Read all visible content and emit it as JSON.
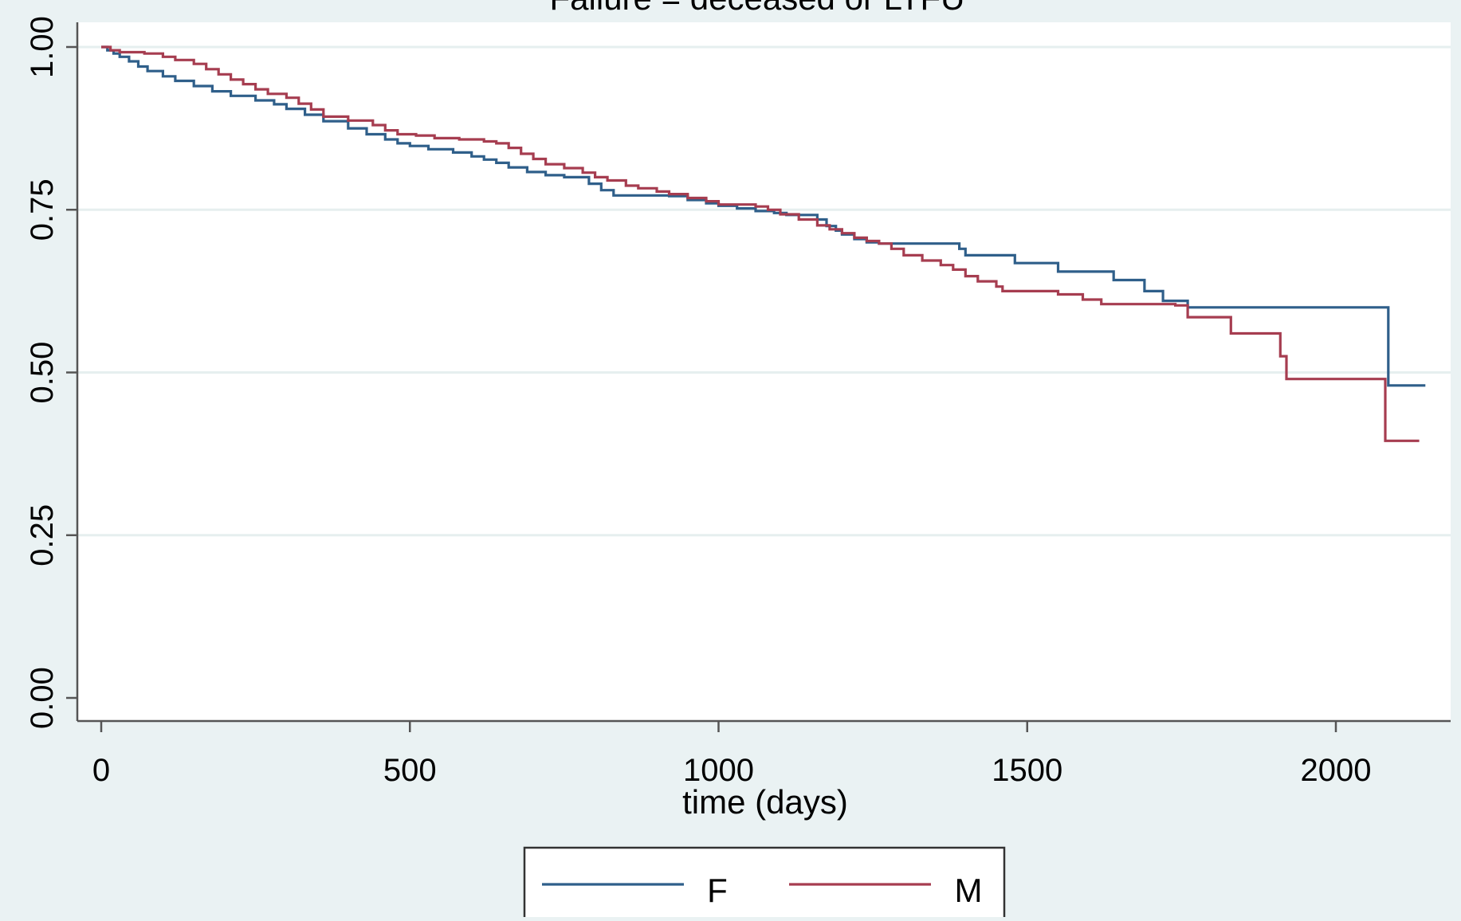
{
  "chart_data": {
    "type": "line",
    "title": "Failure = deceased or LTFU",
    "xlabel": "time (days)",
    "ylabel": "",
    "xlim": [
      0,
      2150
    ],
    "ylim": [
      0,
      1
    ],
    "x_ticks": [
      0,
      500,
      1000,
      1500,
      2000
    ],
    "x_tick_labels": [
      "0",
      "500",
      "1000",
      "1500",
      "2000"
    ],
    "y_ticks": [
      0,
      0.25,
      0.5,
      0.75,
      1
    ],
    "y_tick_labels": [
      "0.00",
      "0.25",
      "0.50",
      "0.75",
      "1.00"
    ],
    "grid": "horizontal",
    "legend_position": "bottom",
    "series": [
      {
        "name": "F",
        "color": "#2f5f8a",
        "step": true,
        "points": [
          [
            0,
            1.0
          ],
          [
            10,
            0.995
          ],
          [
            20,
            0.99
          ],
          [
            30,
            0.985
          ],
          [
            45,
            0.978
          ],
          [
            60,
            0.97
          ],
          [
            75,
            0.963
          ],
          [
            100,
            0.955
          ],
          [
            120,
            0.948
          ],
          [
            150,
            0.94
          ],
          [
            180,
            0.932
          ],
          [
            210,
            0.925
          ],
          [
            250,
            0.918
          ],
          [
            280,
            0.912
          ],
          [
            300,
            0.905
          ],
          [
            330,
            0.896
          ],
          [
            360,
            0.886
          ],
          [
            400,
            0.875
          ],
          [
            430,
            0.866
          ],
          [
            460,
            0.858
          ],
          [
            480,
            0.852
          ],
          [
            500,
            0.848
          ],
          [
            530,
            0.843
          ],
          [
            570,
            0.838
          ],
          [
            600,
            0.832
          ],
          [
            620,
            0.827
          ],
          [
            640,
            0.822
          ],
          [
            660,
            0.815
          ],
          [
            690,
            0.808
          ],
          [
            720,
            0.803
          ],
          [
            750,
            0.8
          ],
          [
            790,
            0.79
          ],
          [
            810,
            0.78
          ],
          [
            830,
            0.772
          ],
          [
            880,
            0.772
          ],
          [
            920,
            0.771
          ],
          [
            950,
            0.765
          ],
          [
            980,
            0.76
          ],
          [
            1000,
            0.756
          ],
          [
            1030,
            0.752
          ],
          [
            1060,
            0.748
          ],
          [
            1090,
            0.745
          ],
          [
            1110,
            0.742
          ],
          [
            1150,
            0.742
          ],
          [
            1160,
            0.735
          ],
          [
            1175,
            0.725
          ],
          [
            1190,
            0.718
          ],
          [
            1200,
            0.712
          ],
          [
            1220,
            0.705
          ],
          [
            1240,
            0.7
          ],
          [
            1260,
            0.698
          ],
          [
            1380,
            0.698
          ],
          [
            1390,
            0.69
          ],
          [
            1400,
            0.68
          ],
          [
            1460,
            0.68
          ],
          [
            1480,
            0.668
          ],
          [
            1550,
            0.655
          ],
          [
            1640,
            0.642
          ],
          [
            1690,
            0.625
          ],
          [
            1720,
            0.61
          ],
          [
            1760,
            0.6
          ],
          [
            2080,
            0.6
          ],
          [
            2085,
            0.48
          ],
          [
            2145,
            0.48
          ]
        ]
      },
      {
        "name": "M",
        "color": "#a63d50",
        "step": true,
        "points": [
          [
            0,
            1.0
          ],
          [
            15,
            0.995
          ],
          [
            30,
            0.992
          ],
          [
            70,
            0.99
          ],
          [
            100,
            0.985
          ],
          [
            120,
            0.98
          ],
          [
            150,
            0.974
          ],
          [
            170,
            0.966
          ],
          [
            190,
            0.958
          ],
          [
            210,
            0.95
          ],
          [
            230,
            0.943
          ],
          [
            250,
            0.935
          ],
          [
            270,
            0.928
          ],
          [
            300,
            0.922
          ],
          [
            320,
            0.913
          ],
          [
            340,
            0.904
          ],
          [
            360,
            0.893
          ],
          [
            400,
            0.887
          ],
          [
            440,
            0.88
          ],
          [
            460,
            0.872
          ],
          [
            480,
            0.866
          ],
          [
            510,
            0.864
          ],
          [
            540,
            0.86
          ],
          [
            580,
            0.858
          ],
          [
            620,
            0.855
          ],
          [
            640,
            0.852
          ],
          [
            660,
            0.845
          ],
          [
            680,
            0.836
          ],
          [
            700,
            0.828
          ],
          [
            720,
            0.82
          ],
          [
            750,
            0.814
          ],
          [
            780,
            0.807
          ],
          [
            800,
            0.8
          ],
          [
            820,
            0.795
          ],
          [
            850,
            0.787
          ],
          [
            870,
            0.783
          ],
          [
            900,
            0.778
          ],
          [
            920,
            0.774
          ],
          [
            950,
            0.768
          ],
          [
            980,
            0.763
          ],
          [
            1000,
            0.758
          ],
          [
            1060,
            0.755
          ],
          [
            1080,
            0.75
          ],
          [
            1100,
            0.743
          ],
          [
            1130,
            0.735
          ],
          [
            1160,
            0.726
          ],
          [
            1180,
            0.72
          ],
          [
            1200,
            0.714
          ],
          [
            1220,
            0.707
          ],
          [
            1240,
            0.702
          ],
          [
            1260,
            0.698
          ],
          [
            1280,
            0.69
          ],
          [
            1300,
            0.68
          ],
          [
            1330,
            0.672
          ],
          [
            1360,
            0.665
          ],
          [
            1380,
            0.658
          ],
          [
            1400,
            0.648
          ],
          [
            1420,
            0.64
          ],
          [
            1450,
            0.632
          ],
          [
            1460,
            0.625
          ],
          [
            1550,
            0.62
          ],
          [
            1590,
            0.612
          ],
          [
            1620,
            0.605
          ],
          [
            1740,
            0.603
          ],
          [
            1760,
            0.585
          ],
          [
            1830,
            0.56
          ],
          [
            1910,
            0.525
          ],
          [
            1920,
            0.49
          ],
          [
            2075,
            0.49
          ],
          [
            2080,
            0.395
          ],
          [
            2135,
            0.395
          ]
        ]
      }
    ]
  }
}
